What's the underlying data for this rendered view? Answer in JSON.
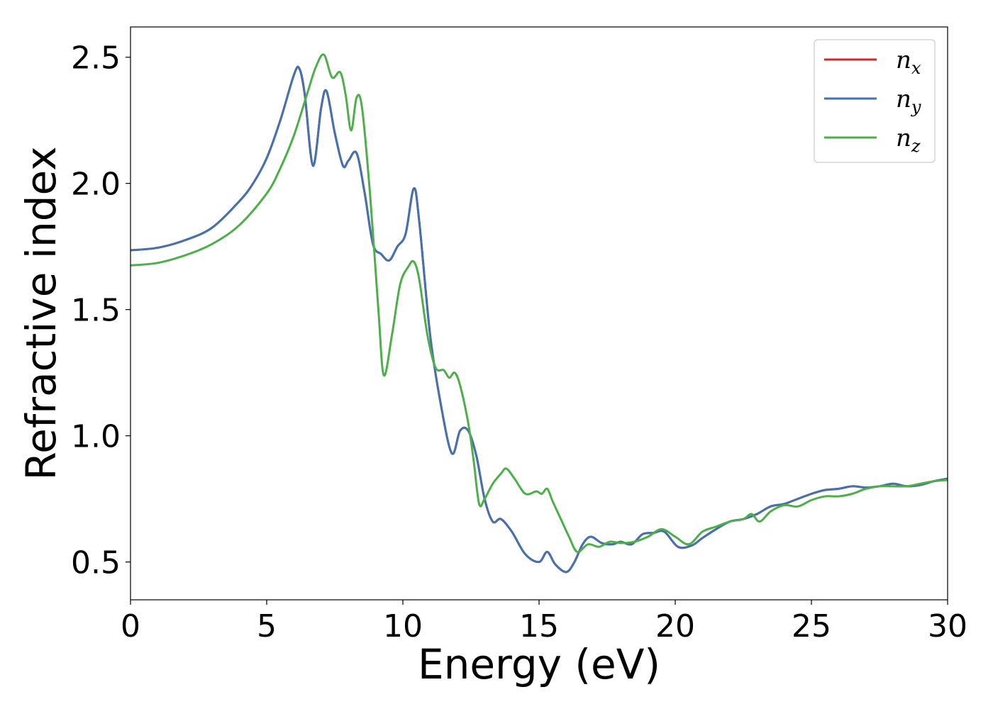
{
  "chart_data": {
    "type": "line",
    "title": "",
    "xlabel": "Energy (eV)",
    "ylabel": "Refractive index",
    "xlim": [
      0,
      30
    ],
    "ylim": [
      0.35,
      2.62
    ],
    "xticks": [
      0,
      5,
      10,
      15,
      20,
      25,
      30
    ],
    "xtick_labels": [
      "0",
      "5",
      "10",
      "15",
      "20",
      "25",
      "30"
    ],
    "yticks": [
      0.5,
      1.0,
      1.5,
      2.0,
      2.5
    ],
    "ytick_labels": [
      "0.5",
      "1.0",
      "1.5",
      "2.0",
      "2.5"
    ],
    "grid": false,
    "legend_position": "top-right",
    "series": [
      {
        "name": "n",
        "subscript": "x",
        "color": "#d62728",
        "x": [
          0,
          1,
          2,
          3,
          4,
          4.5,
          5,
          5.5,
          6,
          6.2,
          6.4,
          6.7,
          7,
          7.2,
          7.5,
          7.8,
          8,
          8.3,
          8.6,
          8.9,
          9.2,
          9.5,
          9.8,
          10.1,
          10.4,
          10.6,
          11,
          11.4,
          11.8,
          12.1,
          12.4,
          12.7,
          13,
          13.3,
          13.6,
          14,
          14.5,
          15,
          15.3,
          15.6,
          16,
          16.3,
          16.6,
          16.9,
          17.3,
          17.7,
          18,
          18.4,
          18.8,
          19.2,
          19.6,
          20.1,
          20.6,
          21,
          21.5,
          22,
          22.5,
          23,
          23.5,
          24,
          24.5,
          25,
          25.5,
          26,
          26.5,
          27,
          27.5,
          28,
          28.5,
          29,
          29.5,
          30
        ],
        "y": [
          1.735,
          1.745,
          1.775,
          1.825,
          1.93,
          2.0,
          2.1,
          2.25,
          2.43,
          2.455,
          2.35,
          2.07,
          2.3,
          2.365,
          2.2,
          2.07,
          2.09,
          2.12,
          1.96,
          1.76,
          1.72,
          1.695,
          1.75,
          1.8,
          1.98,
          1.85,
          1.4,
          1.12,
          0.93,
          1.02,
          1.02,
          0.92,
          0.75,
          0.66,
          0.67,
          0.62,
          0.53,
          0.5,
          0.54,
          0.49,
          0.46,
          0.5,
          0.57,
          0.6,
          0.575,
          0.57,
          0.58,
          0.57,
          0.61,
          0.615,
          0.62,
          0.56,
          0.565,
          0.595,
          0.63,
          0.66,
          0.67,
          0.69,
          0.72,
          0.73,
          0.75,
          0.77,
          0.785,
          0.79,
          0.8,
          0.795,
          0.8,
          0.81,
          0.8,
          0.805,
          0.82,
          0.83
        ]
      },
      {
        "name": "n",
        "subscript": "y",
        "color": "#4272b2",
        "x": [
          0,
          1,
          2,
          3,
          4,
          4.5,
          5,
          5.5,
          6,
          6.2,
          6.4,
          6.7,
          7,
          7.2,
          7.5,
          7.8,
          8,
          8.3,
          8.6,
          8.9,
          9.2,
          9.5,
          9.8,
          10.1,
          10.4,
          10.6,
          11,
          11.4,
          11.8,
          12.1,
          12.4,
          12.7,
          13,
          13.3,
          13.6,
          14,
          14.5,
          15,
          15.3,
          15.6,
          16,
          16.3,
          16.6,
          16.9,
          17.3,
          17.7,
          18,
          18.4,
          18.8,
          19.2,
          19.6,
          20.1,
          20.6,
          21,
          21.5,
          22,
          22.5,
          23,
          23.5,
          24,
          24.5,
          25,
          25.5,
          26,
          26.5,
          27,
          27.5,
          28,
          28.5,
          29,
          29.5,
          30
        ],
        "y": [
          1.735,
          1.745,
          1.775,
          1.825,
          1.93,
          2.0,
          2.1,
          2.25,
          2.43,
          2.455,
          2.35,
          2.07,
          2.3,
          2.365,
          2.2,
          2.07,
          2.09,
          2.12,
          1.96,
          1.76,
          1.72,
          1.695,
          1.75,
          1.8,
          1.98,
          1.85,
          1.4,
          1.12,
          0.93,
          1.02,
          1.02,
          0.92,
          0.75,
          0.66,
          0.67,
          0.62,
          0.53,
          0.5,
          0.54,
          0.49,
          0.46,
          0.5,
          0.57,
          0.6,
          0.575,
          0.57,
          0.58,
          0.57,
          0.61,
          0.615,
          0.62,
          0.56,
          0.565,
          0.595,
          0.63,
          0.66,
          0.67,
          0.69,
          0.72,
          0.73,
          0.75,
          0.77,
          0.785,
          0.79,
          0.8,
          0.795,
          0.8,
          0.81,
          0.8,
          0.805,
          0.82,
          0.83
        ]
      },
      {
        "name": "n",
        "subscript": "z",
        "color": "#4daf4a",
        "x": [
          0,
          1,
          2,
          3,
          4,
          5,
          5.5,
          6,
          6.5,
          6.8,
          7.1,
          7.4,
          7.7,
          7.9,
          8.1,
          8.3,
          8.5,
          8.8,
          9.1,
          9.3,
          9.6,
          9.9,
          10.2,
          10.4,
          10.6,
          10.9,
          11.2,
          11.5,
          11.7,
          11.9,
          12.1,
          12.4,
          12.6,
          12.8,
          13,
          13.3,
          13.6,
          13.8,
          14.1,
          14.5,
          14.9,
          15.1,
          15.3,
          15.5,
          15.8,
          16.1,
          16.4,
          16.8,
          17.2,
          17.6,
          18,
          18.5,
          19,
          19.5,
          20,
          20.5,
          21,
          21.5,
          22,
          22.5,
          22.8,
          23.1,
          23.5,
          24,
          24.5,
          25,
          25.5,
          26,
          26.5,
          27,
          27.5,
          28,
          28.5,
          29,
          29.5,
          30
        ],
        "y": [
          1.675,
          1.685,
          1.715,
          1.76,
          1.835,
          1.96,
          2.06,
          2.19,
          2.36,
          2.46,
          2.51,
          2.42,
          2.44,
          2.35,
          2.21,
          2.34,
          2.3,
          1.95,
          1.5,
          1.24,
          1.4,
          1.6,
          1.67,
          1.69,
          1.62,
          1.4,
          1.27,
          1.26,
          1.23,
          1.25,
          1.2,
          1.05,
          0.9,
          0.73,
          0.75,
          0.81,
          0.85,
          0.87,
          0.83,
          0.77,
          0.78,
          0.77,
          0.79,
          0.74,
          0.67,
          0.6,
          0.54,
          0.57,
          0.56,
          0.58,
          0.575,
          0.58,
          0.6,
          0.63,
          0.6,
          0.57,
          0.62,
          0.64,
          0.66,
          0.67,
          0.69,
          0.66,
          0.7,
          0.725,
          0.72,
          0.745,
          0.76,
          0.76,
          0.77,
          0.79,
          0.8,
          0.8,
          0.8,
          0.81,
          0.82,
          0.825
        ]
      }
    ]
  }
}
